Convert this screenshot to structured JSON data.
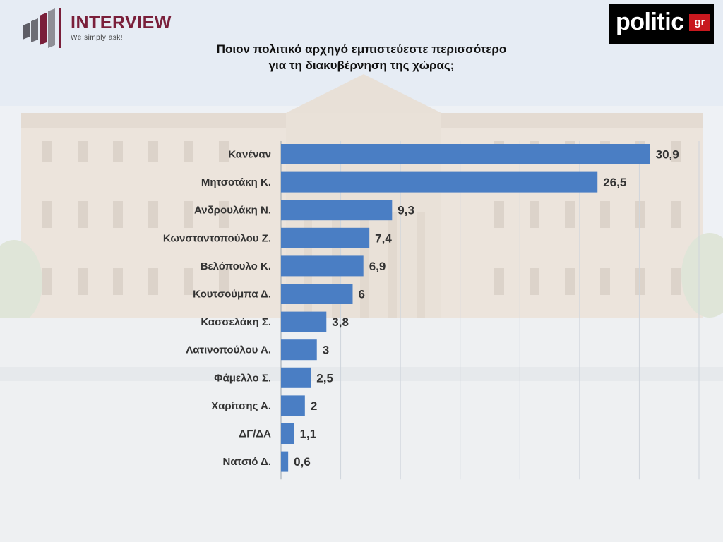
{
  "header": {
    "title_line1": "Ποιον πολιτικό αρχηγό εμπιστεύεστε περισσότερο",
    "title_line2": "για τη διακυβέρνηση της χώρας;"
  },
  "logos": {
    "interview_word": "INTERVIEW",
    "interview_tagline": "We simply ask!",
    "politic_word": "politic",
    "politic_suffix": "gr"
  },
  "colors": {
    "bar": "#4a7ec4",
    "interview_brand": "#7a1f3a",
    "politic_accent": "#c8181e"
  },
  "chart_data": {
    "type": "bar",
    "orientation": "horizontal",
    "title": "Ποιον πολιτικό αρχηγό εμπιστεύεστε περισσότερο για τη διακυβέρνηση της χώρας;",
    "categories": [
      "Κανέναν",
      "Μητσοτάκη Κ.",
      "Ανδρουλάκη Ν.",
      "Κωνσταντοπούλου Ζ.",
      "Βελόπουλο Κ.",
      "Κουτσούμπα Δ.",
      "Κασσελάκη Σ.",
      "Λατινοπούλου Α.",
      "Φάμελλο Σ.",
      "Χαρίτσης Α.",
      "ΔΓ/ΔΑ",
      "Νατσιό Δ."
    ],
    "values": [
      30.9,
      26.5,
      9.3,
      7.4,
      6.9,
      6,
      3.8,
      3,
      2.5,
      2,
      1.1,
      0.6
    ],
    "value_labels": [
      "30,9",
      "26,5",
      "9,3",
      "7,4",
      "6,9",
      "6",
      "3,8",
      "3",
      "2,5",
      "2",
      "1,1",
      "0,6"
    ],
    "xlim": [
      0,
      35
    ],
    "grid": true,
    "xlabel": "",
    "ylabel": ""
  }
}
